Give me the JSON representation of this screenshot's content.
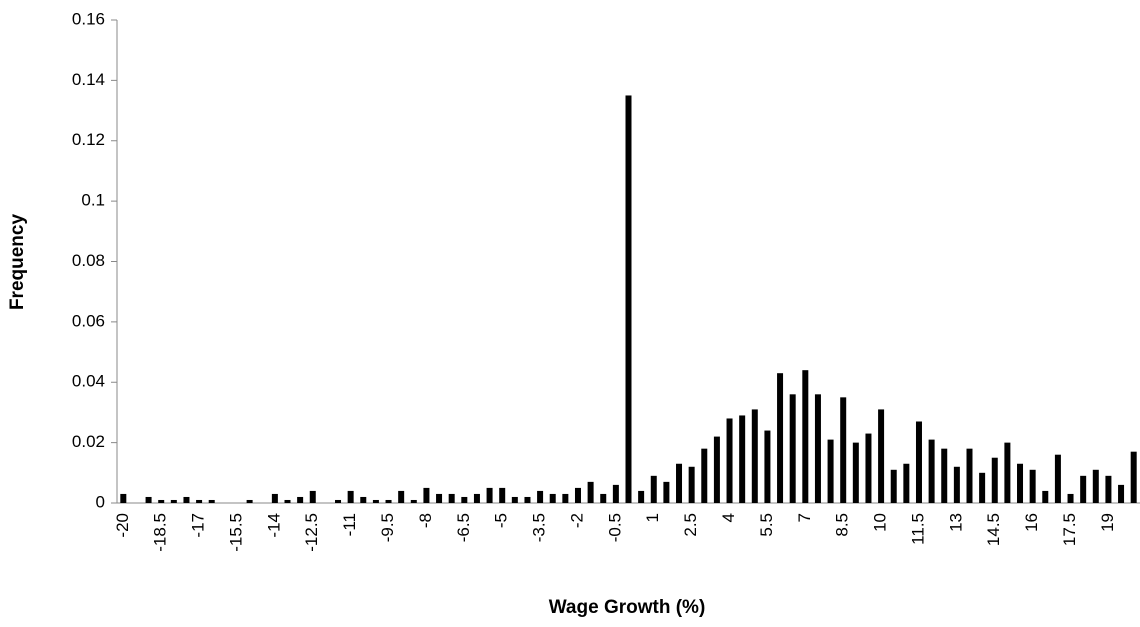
{
  "chart_data": {
    "type": "bar",
    "x_label": "Wage Growth (%)",
    "y_label": "Frequency",
    "color": "#000000",
    "categories": [
      "-20",
      null,
      null,
      "-18.5",
      null,
      null,
      "-17",
      null,
      null,
      "-15.5",
      null,
      null,
      "-14",
      null,
      null,
      "-12.5",
      null,
      null,
      "-11",
      null,
      null,
      "-9.5",
      null,
      null,
      "-8",
      null,
      null,
      "-6.5",
      null,
      null,
      "-5",
      null,
      null,
      "-3.5",
      null,
      null,
      "-2",
      null,
      null,
      "-0.5",
      null,
      null,
      "1",
      null,
      null,
      "2.5",
      null,
      null,
      "4",
      null,
      null,
      "5.5",
      null,
      null,
      "7",
      null,
      null,
      "8.5",
      null,
      null,
      "10",
      null,
      null,
      "11.5",
      null,
      null,
      "13",
      null,
      null,
      "14.5",
      null,
      null,
      "16",
      null,
      null,
      "17.5",
      null,
      null,
      "19",
      null,
      null
    ],
    "values": [
      0.003,
      0,
      0.002,
      0.001,
      0.001,
      0.002,
      0.001,
      0.001,
      0,
      0,
      0.001,
      0,
      0.003,
      0.001,
      0.002,
      0.004,
      0,
      0.001,
      0.004,
      0.002,
      0.001,
      0.001,
      0.004,
      0.001,
      0.005,
      0.003,
      0.003,
      0.002,
      0.003,
      0.005,
      0.005,
      0.002,
      0.002,
      0.004,
      0.003,
      0.003,
      0.005,
      0.007,
      0.003,
      0.006,
      0.135,
      0.004,
      0.009,
      0.007,
      0.013,
      0.012,
      0.018,
      0.022,
      0.028,
      0.029,
      0.031,
      0.024,
      0.043,
      0.036,
      0.044,
      0.036,
      0.021,
      0.035,
      0.02,
      0.023,
      0.031,
      0.011,
      0.013,
      0.027,
      0.021,
      0.018,
      0.012,
      0.018,
      0.01,
      0.015,
      0.02,
      0.013,
      0.011,
      0.004,
      0.016,
      0.003,
      0.009,
      0.011,
      0.009,
      0.006,
      0.017
    ],
    "ylim": [
      0,
      0.16
    ],
    "yticks": [
      0,
      0.02,
      0.04,
      0.06,
      0.08,
      0.1,
      0.12,
      0.14,
      0.16
    ],
    "grid": false
  }
}
